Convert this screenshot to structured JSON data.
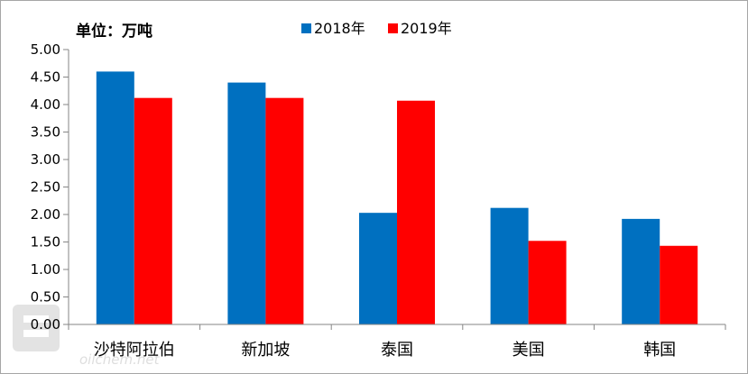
{
  "chart_data": {
    "type": "bar",
    "unit_label": "单位：万吨",
    "categories": [
      "沙特阿拉伯",
      "新加坡",
      "泰国",
      "美国",
      "韩国"
    ],
    "series": [
      {
        "name": "2018年",
        "color": "#0070c0",
        "values": [
          4.6,
          4.4,
          2.03,
          2.12,
          1.92
        ]
      },
      {
        "name": "2019年",
        "color": "#ff0000",
        "values": [
          4.12,
          4.12,
          4.07,
          1.52,
          1.43
        ]
      }
    ],
    "ylim": [
      0,
      5
    ],
    "yticks": [
      "0.00",
      "0.50",
      "1.00",
      "1.50",
      "2.00",
      "2.50",
      "3.00",
      "3.50",
      "4.00",
      "4.50",
      "5.00"
    ],
    "grid": false,
    "legend_position": "top-center"
  },
  "watermark": {
    "text": "oilchem.net"
  }
}
